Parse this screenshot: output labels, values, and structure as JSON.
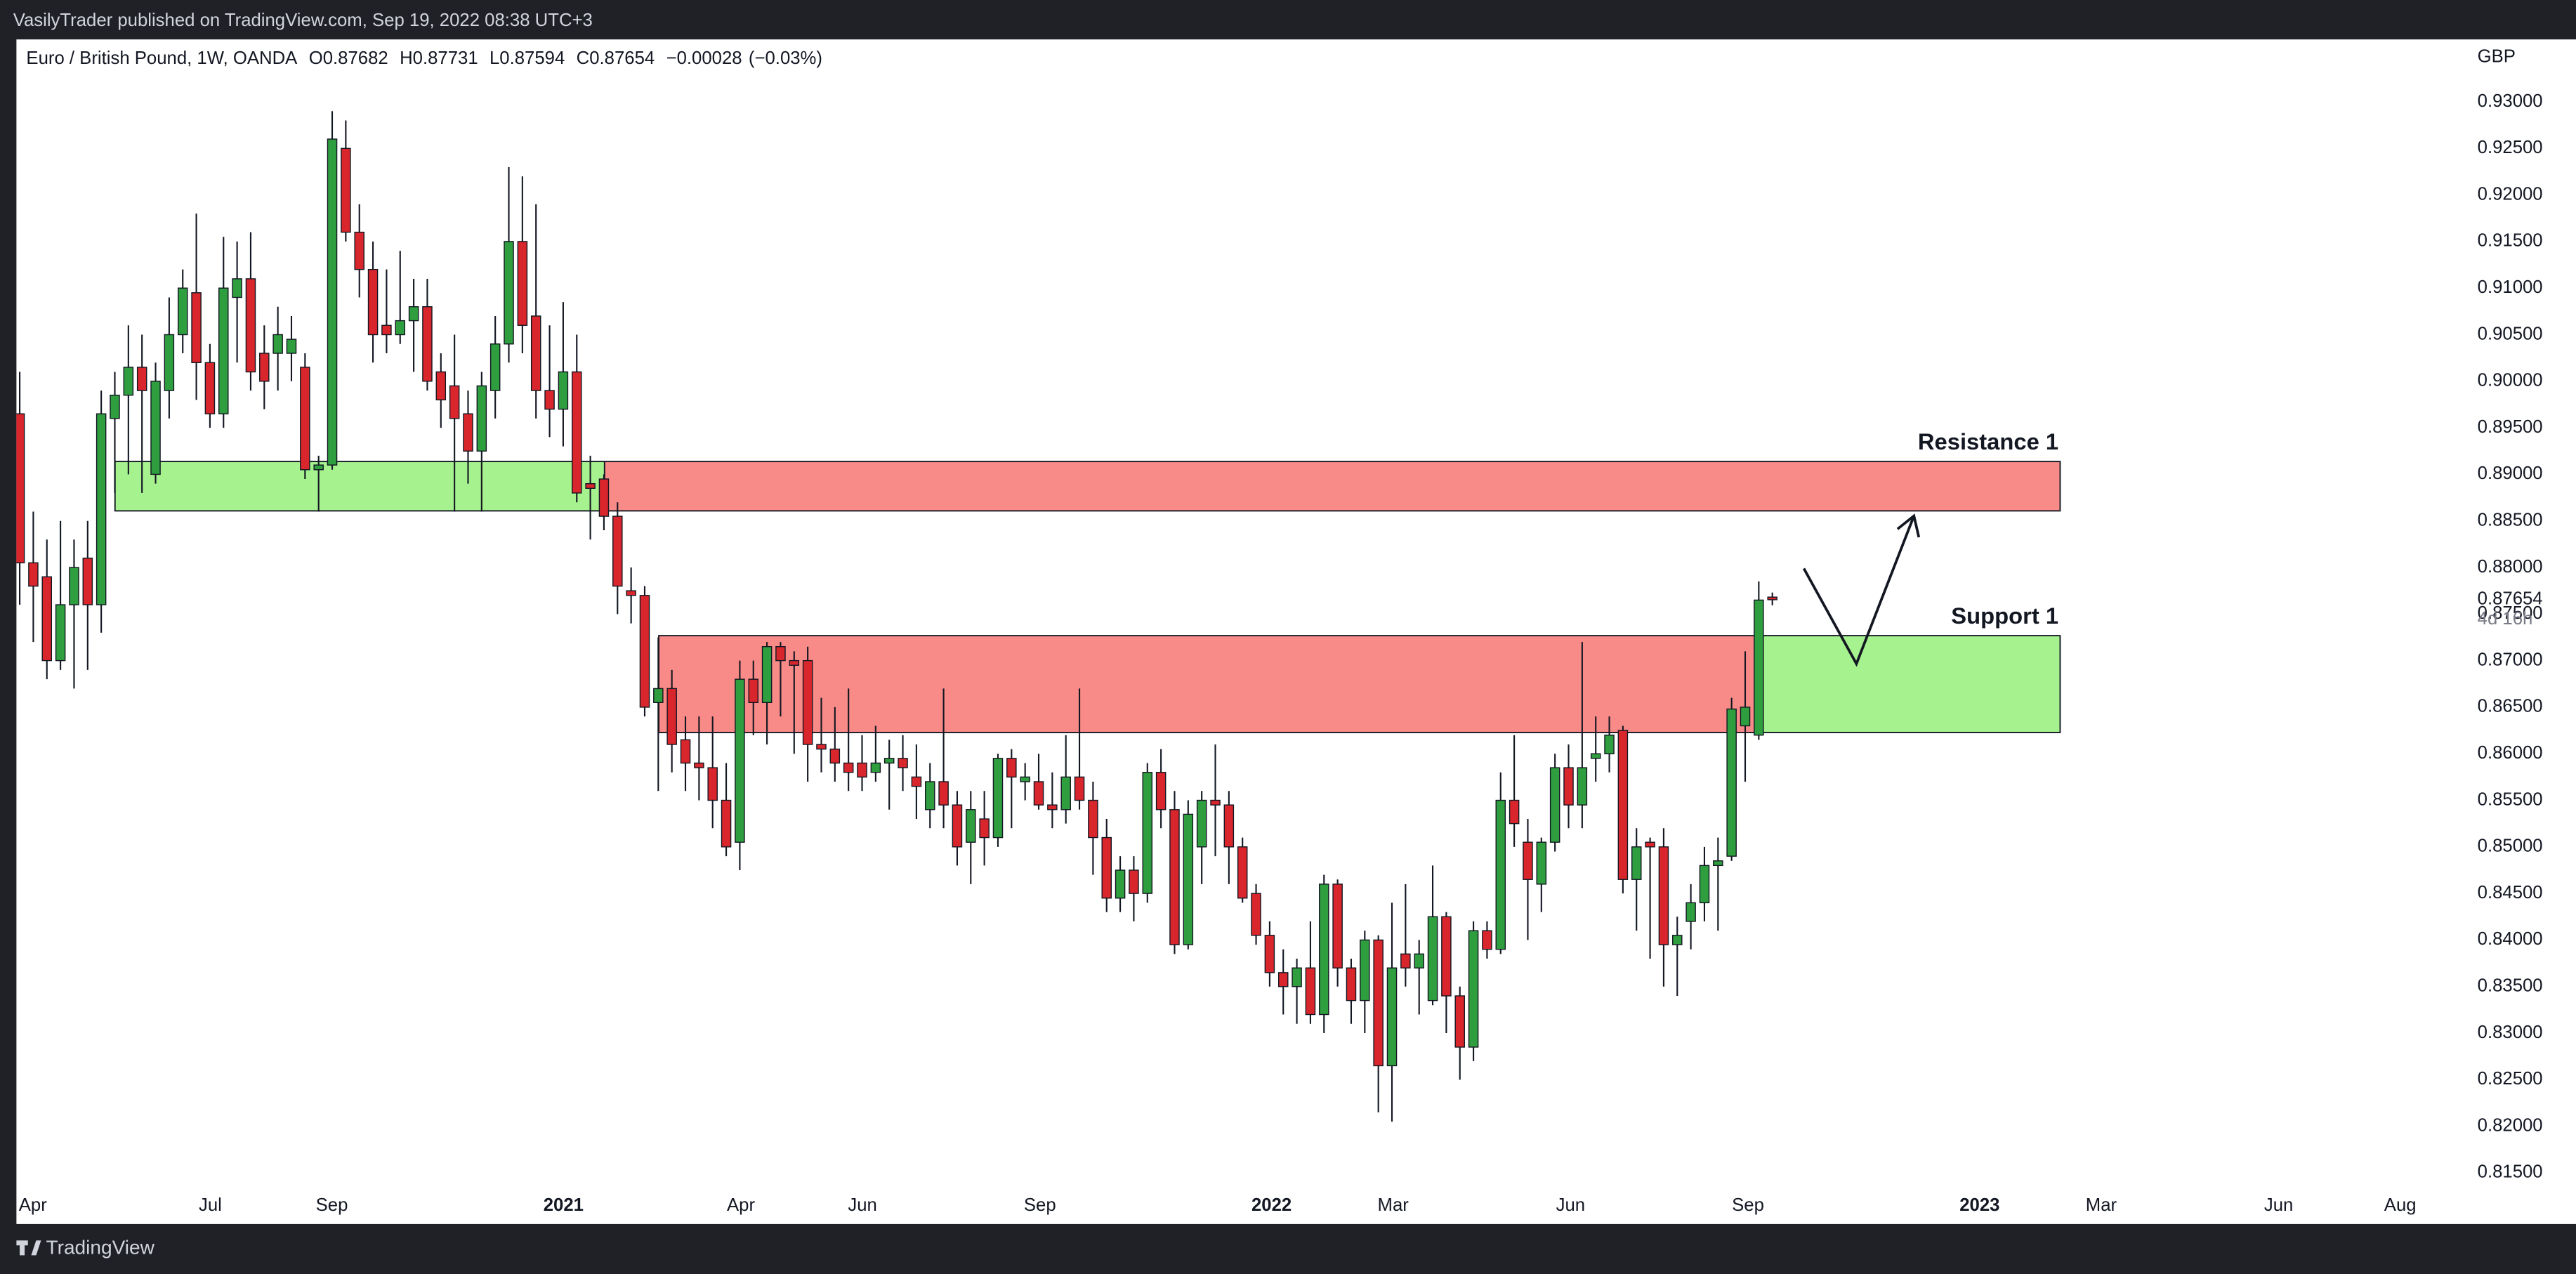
{
  "header": "VasilyTrader published on TradingView.com, Sep 19, 2022 08:38 UTC+3",
  "footer": "TradingView",
  "chart_data": {
    "type": "candlestick",
    "legend": {
      "symbol": "Euro / British Pound, 1W, OANDA",
      "ohlc": [
        {
          "name": "O",
          "value": 0.87682
        },
        {
          "name": "H",
          "value": 0.87731
        },
        {
          "name": "L",
          "value": 0.87594
        },
        {
          "name": "C",
          "value": 0.87654
        }
      ],
      "change": {
        "value": -0.00028,
        "label": "−0.00028"
      },
      "change_percent": {
        "value": -0.03,
        "label": "(−0.03%)"
      }
    },
    "currency": "GBP",
    "up_color": "#2e9e3f",
    "down_color": "#d9262c",
    "series": {
      "open": [
        0.8965,
        0.8805,
        0.879,
        0.87,
        0.876,
        0.881,
        0.876,
        0.896,
        0.8985,
        0.9015,
        0.89,
        0.899,
        0.905,
        0.9095,
        0.902,
        0.8965,
        0.909,
        0.911,
        0.903,
        0.903,
        0.903,
        0.9015,
        0.8905,
        0.891,
        0.925,
        0.916,
        0.912,
        0.906,
        0.905,
        0.9065,
        0.908,
        0.901,
        0.8995,
        0.8965,
        0.8925,
        0.899,
        0.904,
        0.915,
        0.907,
        0.899,
        0.897,
        0.901,
        0.889,
        0.8895,
        0.8855,
        0.8775,
        0.877,
        0.8655,
        0.867,
        0.8615,
        0.859,
        0.8585,
        0.855,
        0.8505,
        0.868,
        0.8655,
        0.8715,
        0.87,
        0.87,
        0.861,
        0.8605,
        0.859,
        0.859,
        0.858,
        0.859,
        0.8595,
        0.8575,
        0.854,
        0.857,
        0.8545,
        0.8505,
        0.853,
        0.851,
        0.8595,
        0.857,
        0.857,
        0.8545,
        0.854,
        0.8575,
        0.855,
        0.851,
        0.8445,
        0.8475,
        0.845,
        0.858,
        0.854,
        0.8395,
        0.85,
        0.855,
        0.8545,
        0.85,
        0.845,
        0.8405,
        0.8365,
        0.835,
        0.837,
        0.832,
        0.846,
        0.837,
        0.8335,
        0.84,
        0.8265,
        0.8385,
        0.837,
        0.8335,
        0.8425,
        0.834,
        0.8285,
        0.841,
        0.839,
        0.855,
        0.8505,
        0.846,
        0.8505,
        0.8585,
        0.8545,
        0.8595,
        0.86,
        0.8625,
        0.8465,
        0.8505,
        0.85,
        0.8395,
        0.842,
        0.844,
        0.848,
        0.849,
        0.863,
        0.862,
        0.87682
      ],
      "high": [
        0.901,
        0.886,
        0.883,
        0.885,
        0.883,
        0.885,
        0.899,
        0.901,
        0.906,
        0.905,
        0.902,
        0.909,
        0.912,
        0.918,
        0.904,
        0.9155,
        0.915,
        0.916,
        0.906,
        0.908,
        0.907,
        0.903,
        0.892,
        0.929,
        0.928,
        0.919,
        0.915,
        0.912,
        0.914,
        0.911,
        0.911,
        0.903,
        0.905,
        0.899,
        0.901,
        0.907,
        0.923,
        0.922,
        0.919,
        0.906,
        0.9085,
        0.905,
        0.892,
        0.89,
        0.887,
        0.88,
        0.878,
        0.8725,
        0.869,
        0.864,
        0.864,
        0.864,
        0.859,
        0.87,
        0.87,
        0.872,
        0.872,
        0.871,
        0.8715,
        0.866,
        0.865,
        0.867,
        0.862,
        0.863,
        0.8615,
        0.862,
        0.861,
        0.859,
        0.867,
        0.856,
        0.856,
        0.856,
        0.86,
        0.8605,
        0.859,
        0.86,
        0.858,
        0.862,
        0.867,
        0.857,
        0.853,
        0.849,
        0.849,
        0.859,
        0.8605,
        0.856,
        0.855,
        0.856,
        0.861,
        0.856,
        0.851,
        0.846,
        0.842,
        0.839,
        0.838,
        0.842,
        0.847,
        0.8465,
        0.838,
        0.841,
        0.8405,
        0.844,
        0.846,
        0.84,
        0.848,
        0.843,
        0.835,
        0.842,
        0.842,
        0.858,
        0.862,
        0.853,
        0.851,
        0.86,
        0.861,
        0.872,
        0.864,
        0.864,
        0.863,
        0.852,
        0.851,
        0.852,
        0.8425,
        0.846,
        0.85,
        0.851,
        0.866,
        0.871,
        0.8785,
        0.87731
      ],
      "low": [
        0.876,
        0.872,
        0.868,
        0.869,
        0.867,
        0.869,
        0.873,
        0.888,
        0.89,
        0.888,
        0.889,
        0.896,
        0.903,
        0.898,
        0.895,
        0.895,
        0.902,
        0.899,
        0.897,
        0.899,
        0.9,
        0.8895,
        0.886,
        0.8905,
        0.915,
        0.909,
        0.902,
        0.903,
        0.904,
        0.901,
        0.899,
        0.895,
        0.886,
        0.889,
        0.886,
        0.896,
        0.902,
        0.903,
        0.896,
        0.894,
        0.893,
        0.887,
        0.883,
        0.884,
        0.875,
        0.874,
        0.864,
        0.856,
        0.858,
        0.856,
        0.855,
        0.852,
        0.849,
        0.8475,
        0.862,
        0.861,
        0.864,
        0.86,
        0.857,
        0.858,
        0.857,
        0.856,
        0.856,
        0.857,
        0.854,
        0.856,
        0.853,
        0.852,
        0.852,
        0.848,
        0.846,
        0.848,
        0.85,
        0.852,
        0.855,
        0.854,
        0.852,
        0.8525,
        0.854,
        0.847,
        0.843,
        0.843,
        0.842,
        0.844,
        0.852,
        0.8385,
        0.839,
        0.846,
        0.849,
        0.846,
        0.844,
        0.8395,
        0.835,
        0.832,
        0.831,
        0.831,
        0.83,
        0.835,
        0.831,
        0.83,
        0.8215,
        0.8205,
        0.835,
        0.832,
        0.833,
        0.83,
        0.825,
        0.827,
        0.838,
        0.8385,
        0.85,
        0.84,
        0.843,
        0.8495,
        0.852,
        0.852,
        0.857,
        0.858,
        0.845,
        0.841,
        0.838,
        0.835,
        0.834,
        0.839,
        0.842,
        0.841,
        0.8485,
        0.857,
        0.8615,
        0.87594
      ],
      "close": [
        0.8805,
        0.878,
        0.87,
        0.876,
        0.88,
        0.876,
        0.8965,
        0.8985,
        0.9015,
        0.899,
        0.9,
        0.905,
        0.91,
        0.902,
        0.8965,
        0.91,
        0.911,
        0.901,
        0.9,
        0.905,
        0.9045,
        0.8905,
        0.891,
        0.926,
        0.916,
        0.912,
        0.905,
        0.905,
        0.9065,
        0.908,
        0.9,
        0.898,
        0.896,
        0.8925,
        0.8995,
        0.904,
        0.915,
        0.906,
        0.899,
        0.897,
        0.901,
        0.888,
        0.8885,
        0.8855,
        0.878,
        0.877,
        0.865,
        0.867,
        0.861,
        0.859,
        0.8585,
        0.855,
        0.85,
        0.868,
        0.8655,
        0.8715,
        0.87,
        0.8695,
        0.861,
        0.8605,
        0.859,
        0.858,
        0.8575,
        0.859,
        0.8595,
        0.8585,
        0.8565,
        0.857,
        0.8545,
        0.85,
        0.854,
        0.851,
        0.8595,
        0.8575,
        0.8575,
        0.8545,
        0.854,
        0.8575,
        0.855,
        0.851,
        0.8445,
        0.8475,
        0.845,
        0.858,
        0.854,
        0.8395,
        0.8535,
        0.855,
        0.8545,
        0.85,
        0.8445,
        0.8405,
        0.8365,
        0.835,
        0.837,
        0.832,
        0.846,
        0.837,
        0.8335,
        0.84,
        0.8265,
        0.837,
        0.837,
        0.8385,
        0.8425,
        0.834,
        0.8285,
        0.841,
        0.839,
        0.855,
        0.8525,
        0.8465,
        0.8505,
        0.8585,
        0.8545,
        0.8585,
        0.86,
        0.862,
        0.8465,
        0.85,
        0.85,
        0.8395,
        0.8405,
        0.844,
        0.848,
        0.8485,
        0.8648,
        0.865,
        0.8765,
        0.87654
      ]
    },
    "ylim": [
      0.8095,
      0.9367
    ],
    "yticks": [
      {
        "value": 0.815,
        "label": "0.81500"
      },
      {
        "value": 0.82,
        "label": "0.82000"
      },
      {
        "value": 0.825,
        "label": "0.82500"
      },
      {
        "value": 0.83,
        "label": "0.83000"
      },
      {
        "value": 0.835,
        "label": "0.83500"
      },
      {
        "value": 0.84,
        "label": "0.84000"
      },
      {
        "value": 0.845,
        "label": "0.84500"
      },
      {
        "value": 0.85,
        "label": "0.85000"
      },
      {
        "value": 0.855,
        "label": "0.85500"
      },
      {
        "value": 0.86,
        "label": "0.86000"
      },
      {
        "value": 0.865,
        "label": "0.86500"
      },
      {
        "value": 0.87,
        "label": "0.87000"
      },
      {
        "value": 0.875,
        "label": "0.87500"
      },
      {
        "value": 0.88,
        "label": "0.88000"
      },
      {
        "value": 0.885,
        "label": "0.88500"
      },
      {
        "value": 0.89,
        "label": "0.89000"
      },
      {
        "value": 0.895,
        "label": "0.89500"
      },
      {
        "value": 0.9,
        "label": "0.90000"
      },
      {
        "value": 0.905,
        "label": "0.90500"
      },
      {
        "value": 0.91,
        "label": "0.91000"
      },
      {
        "value": 0.915,
        "label": "0.91500"
      },
      {
        "value": 0.92,
        "label": "0.92000"
      },
      {
        "value": 0.925,
        "label": "0.92500"
      },
      {
        "value": 0.93,
        "label": "0.93000"
      }
    ],
    "xticks": [
      "Apr",
      "Jul",
      "Sep",
      "2021",
      "Apr",
      "Jun",
      "Sep",
      "2022",
      "Mar",
      "Jun",
      "Sep",
      "2023",
      "Mar",
      "Jun",
      "Aug"
    ],
    "price_label": 0.87654,
    "countdown": "4d 16h",
    "zones": [
      {
        "color": "#a6f28f",
        "top": 0.89138,
        "bottom": 0.88608
      },
      {
        "label": "Resistance 1",
        "color": "#f88a87",
        "top": 0.89138,
        "bottom": 0.88608
      },
      {
        "color": "#f88a87",
        "top": 0.87268,
        "bottom": 0.86228
      },
      {
        "label": "Support 1",
        "color": "#a6f28f",
        "top": 0.87268,
        "bottom": 0.86228
      }
    ]
  }
}
